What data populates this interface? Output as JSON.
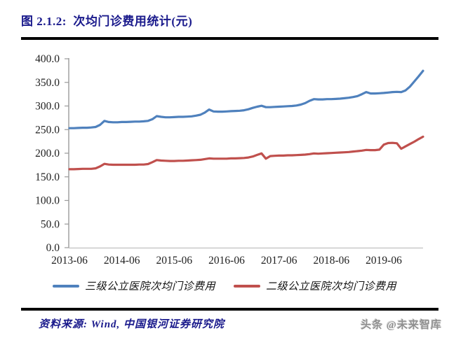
{
  "header": {
    "title": "图 2.1.2:  次均门诊费用统计(元)"
  },
  "chart_data": {
    "type": "line",
    "title": "次均门诊费用统计(元)",
    "x_unit": "month",
    "x_start": "2013-06",
    "x_end": "2020-03",
    "x_freq": "monthly",
    "x_tick_labels": [
      "2013-06",
      "2014-06",
      "2015-06",
      "2016-06",
      "2017-06",
      "2018-06",
      "2019-06"
    ],
    "x_tick_indices": [
      0,
      12,
      24,
      36,
      48,
      60,
      72
    ],
    "y_ticks": [
      0,
      50,
      100,
      150,
      200,
      250,
      300,
      350,
      400
    ],
    "y_tick_format_decimals": 1,
    "ylim": [
      0,
      400
    ],
    "grid": false,
    "legend_position": "bottom",
    "axis_color": "#9a9a9a",
    "x_axis_color": "#c0c0c0",
    "tick_label_color": "#1f1f1f",
    "series": [
      {
        "name": "三级公立医院次均门诊费用",
        "color": "#4F81BD",
        "values": [
          253,
          253,
          253.5,
          254,
          254,
          254.5,
          255.5,
          260,
          268.5,
          266,
          265.5,
          265.5,
          266,
          266,
          266.5,
          267,
          267,
          267.5,
          268.5,
          272,
          278.5,
          277,
          276,
          276,
          276.5,
          277,
          277,
          277.5,
          278,
          279.5,
          281.5,
          286,
          292.5,
          288.5,
          288,
          288,
          288.5,
          289,
          289.5,
          290,
          291,
          293,
          296,
          298.5,
          300.5,
          297.5,
          297.5,
          298,
          298.5,
          299,
          299.5,
          300,
          301,
          303,
          306,
          311,
          314.5,
          314,
          314,
          314.5,
          314.5,
          315,
          315.5,
          316.5,
          317.5,
          319,
          321,
          325,
          329.5,
          326.5,
          326.5,
          327,
          327.5,
          328.5,
          329.5,
          330,
          329.5,
          333,
          341,
          352,
          363,
          374.5
        ]
      },
      {
        "name": "二级公立医院次均门诊费用",
        "color": "#C0504D",
        "values": [
          166,
          166,
          166.5,
          167,
          167,
          167,
          168,
          172,
          177.5,
          176,
          175.5,
          175.5,
          175.5,
          175.5,
          175.5,
          175.5,
          176,
          176,
          177,
          181,
          185.5,
          184.5,
          184,
          183.5,
          183.5,
          184,
          184,
          184.5,
          185,
          185.5,
          186,
          187.5,
          189,
          188.5,
          188.5,
          188.5,
          188.5,
          189,
          189,
          189.5,
          190,
          191,
          193,
          196.5,
          199.5,
          188.5,
          194,
          194.5,
          195,
          195,
          195.5,
          195.5,
          196,
          196.5,
          197,
          198,
          199.5,
          199,
          199.5,
          200,
          200.5,
          201,
          201.5,
          202,
          202.5,
          203.5,
          204.5,
          205.5,
          207,
          206.5,
          206.5,
          207.5,
          218,
          221.5,
          222,
          221,
          209.5,
          214.5,
          219.5,
          224.5,
          230,
          235
        ]
      }
    ]
  },
  "footer": {
    "source": "资料来源: Wind, 中国银河证券研究院",
    "watermark": "头条 @未来智库"
  }
}
